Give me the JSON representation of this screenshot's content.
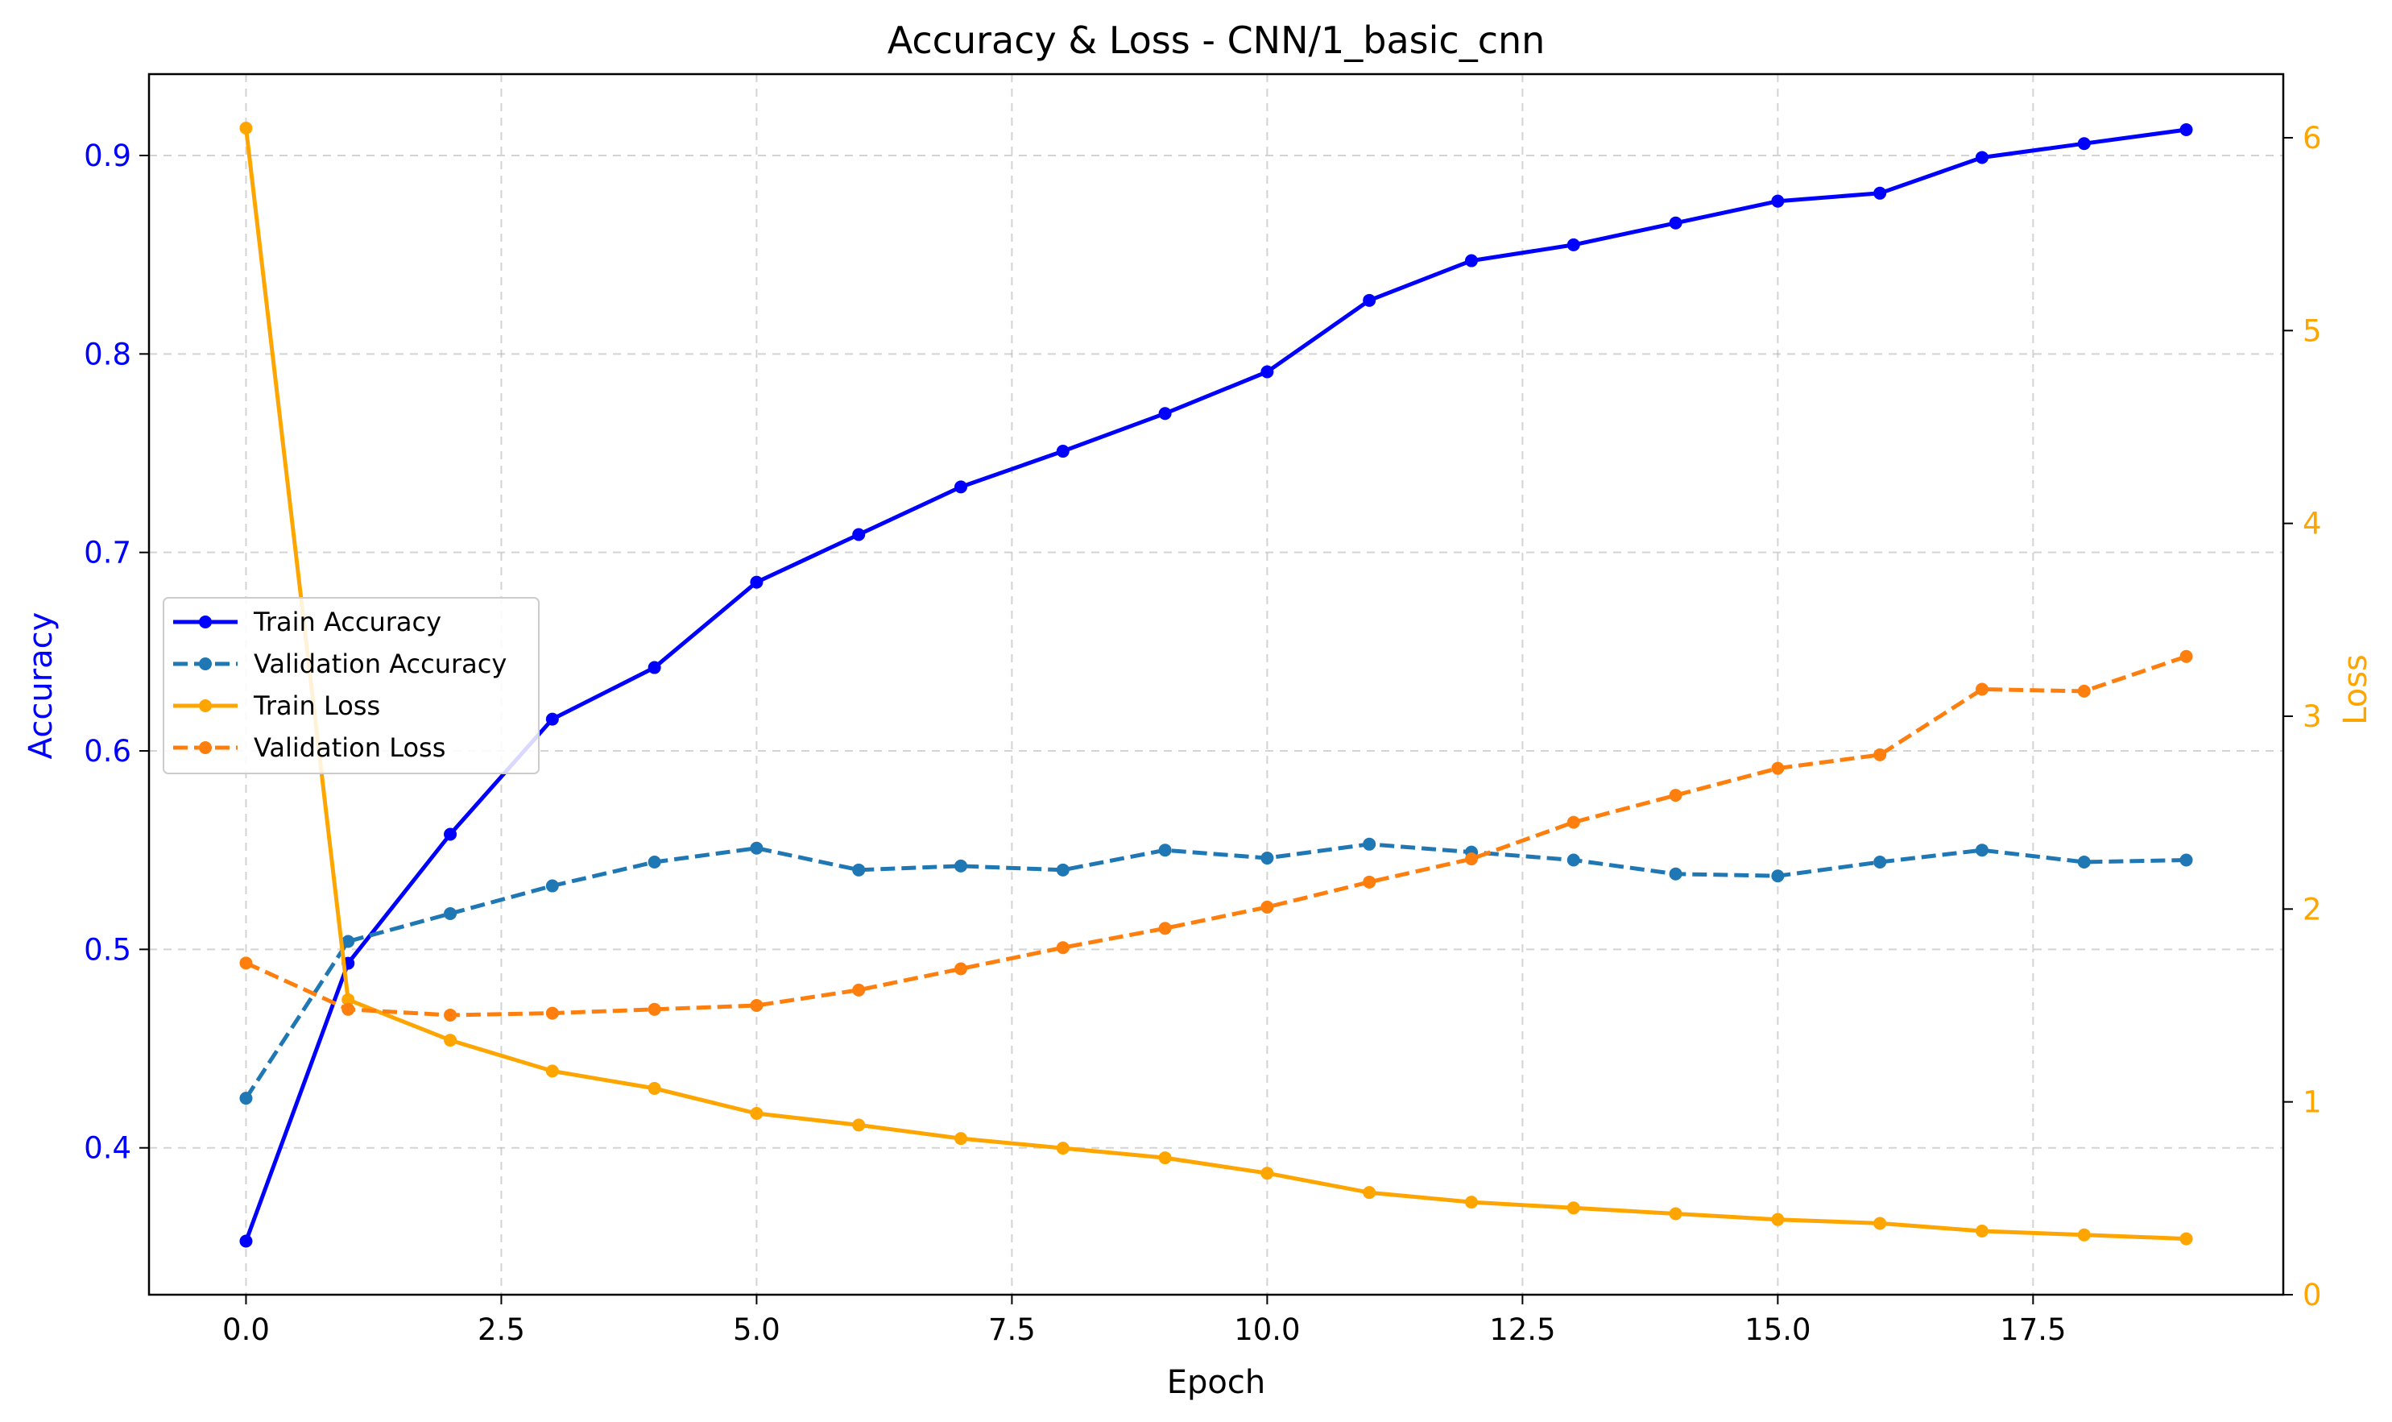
{
  "chart_data": {
    "type": "line",
    "title": "Accuracy & Loss - CNN/1_basic_cnn",
    "xlabel": "Epoch",
    "ylabel_left": "Accuracy",
    "ylabel_right": "Loss",
    "xlim": [
      -0.95,
      19.95
    ],
    "ylim_left": [
      0.326,
      0.941
    ],
    "ylim_right": [
      0,
      6.33
    ],
    "xticks": [
      "0.0",
      "2.5",
      "5.0",
      "7.5",
      "10.0",
      "12.5",
      "15.0",
      "17.5"
    ],
    "xtick_values": [
      0,
      2.5,
      5,
      7.5,
      10,
      12.5,
      15,
      17.5
    ],
    "yticks_left": [
      "0.4",
      "0.5",
      "0.6",
      "0.7",
      "0.8",
      "0.9"
    ],
    "ytick_values_left": [
      0.4,
      0.5,
      0.6,
      0.7,
      0.8,
      0.9
    ],
    "yticks_right": [
      "0",
      "1",
      "2",
      "3",
      "4",
      "5",
      "6"
    ],
    "ytick_values_right": [
      0,
      1,
      2,
      3,
      4,
      5,
      6
    ],
    "grid": true,
    "legend_position": "center-left",
    "colors": {
      "left_axis": "#0000ff",
      "right_axis": "#ffa500"
    },
    "x": [
      0,
      1,
      2,
      3,
      4,
      5,
      6,
      7,
      8,
      9,
      10,
      11,
      12,
      13,
      14,
      15,
      16,
      17,
      18,
      19
    ],
    "series": [
      {
        "name": "Train Accuracy",
        "axis": "left",
        "color": "#0000ff",
        "linestyle": "solid",
        "values": [
          0.353,
          0.493,
          0.558,
          0.616,
          0.642,
          0.685,
          0.709,
          0.733,
          0.751,
          0.77,
          0.791,
          0.827,
          0.847,
          0.855,
          0.866,
          0.877,
          0.881,
          0.899,
          0.906,
          0.913
        ]
      },
      {
        "name": "Validation Accuracy",
        "axis": "left",
        "color": "#1f77b4",
        "linestyle": "dashed",
        "values": [
          0.425,
          0.504,
          0.518,
          0.532,
          0.544,
          0.551,
          0.54,
          0.542,
          0.54,
          0.55,
          0.546,
          0.553,
          0.549,
          0.545,
          0.538,
          0.537,
          0.544,
          0.55,
          0.544,
          0.545
        ]
      },
      {
        "name": "Train Loss",
        "axis": "right",
        "color": "#ffa500",
        "linestyle": "solid",
        "values": [
          6.05,
          1.53,
          1.32,
          1.16,
          1.07,
          0.94,
          0.88,
          0.81,
          0.76,
          0.71,
          0.63,
          0.53,
          0.48,
          0.45,
          0.42,
          0.39,
          0.37,
          0.33,
          0.31,
          0.29
        ]
      },
      {
        "name": "Validation Loss",
        "axis": "right",
        "color": "#ff7f0e",
        "linestyle": "dashed",
        "values": [
          1.72,
          1.48,
          1.45,
          1.46,
          1.48,
          1.5,
          1.58,
          1.69,
          1.8,
          1.9,
          2.01,
          2.14,
          2.26,
          2.45,
          2.59,
          2.73,
          2.8,
          3.14,
          3.13,
          3.31
        ]
      }
    ]
  }
}
